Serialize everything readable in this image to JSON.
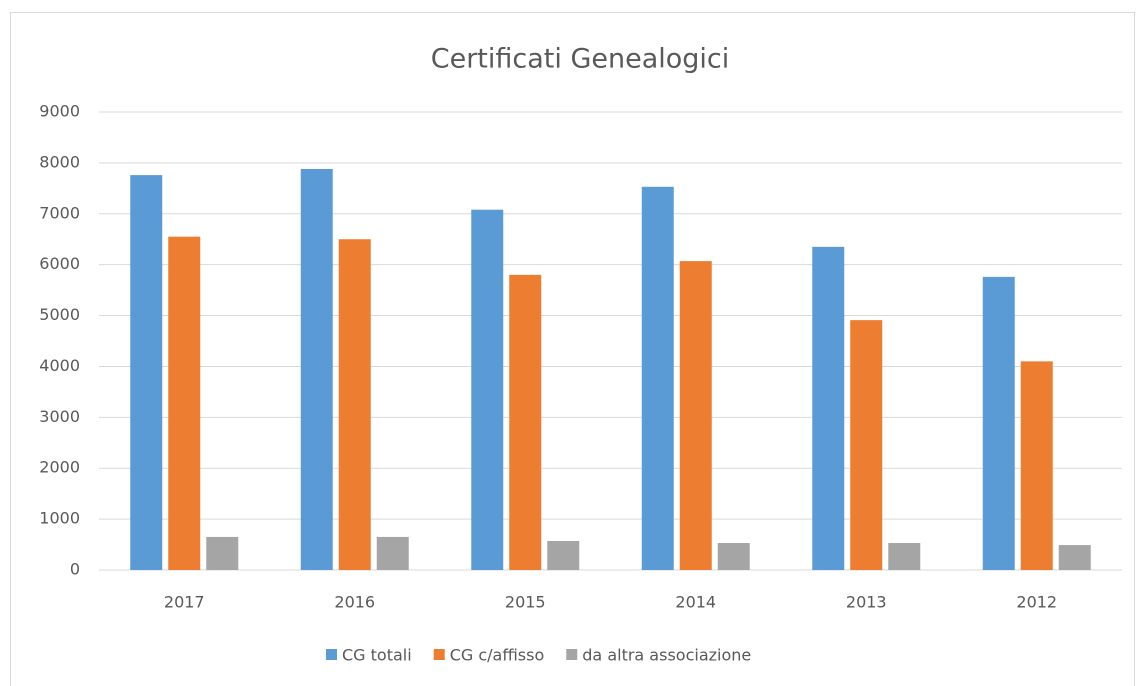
{
  "chart_data": {
    "type": "bar",
    "title": "Certificati Genealogici",
    "categories": [
      "2017",
      "2016",
      "2015",
      "2014",
      "2013",
      "2012"
    ],
    "series": [
      {
        "name": "CG totali",
        "color": "#5b9bd5",
        "values": [
          7760,
          7880,
          7080,
          7530,
          6350,
          5760
        ]
      },
      {
        "name": "CG c/affisso",
        "color": "#ed7d31",
        "values": [
          6550,
          6500,
          5800,
          6070,
          4910,
          4100
        ]
      },
      {
        "name": "da altra associazione",
        "color": "#a5a5a5",
        "values": [
          650,
          650,
          570,
          530,
          530,
          490
        ]
      }
    ],
    "ylim": [
      0,
      9000
    ],
    "yticks": [
      0,
      1000,
      2000,
      3000,
      4000,
      5000,
      6000,
      7000,
      8000,
      9000
    ],
    "grid": true,
    "legend": "bottom"
  }
}
